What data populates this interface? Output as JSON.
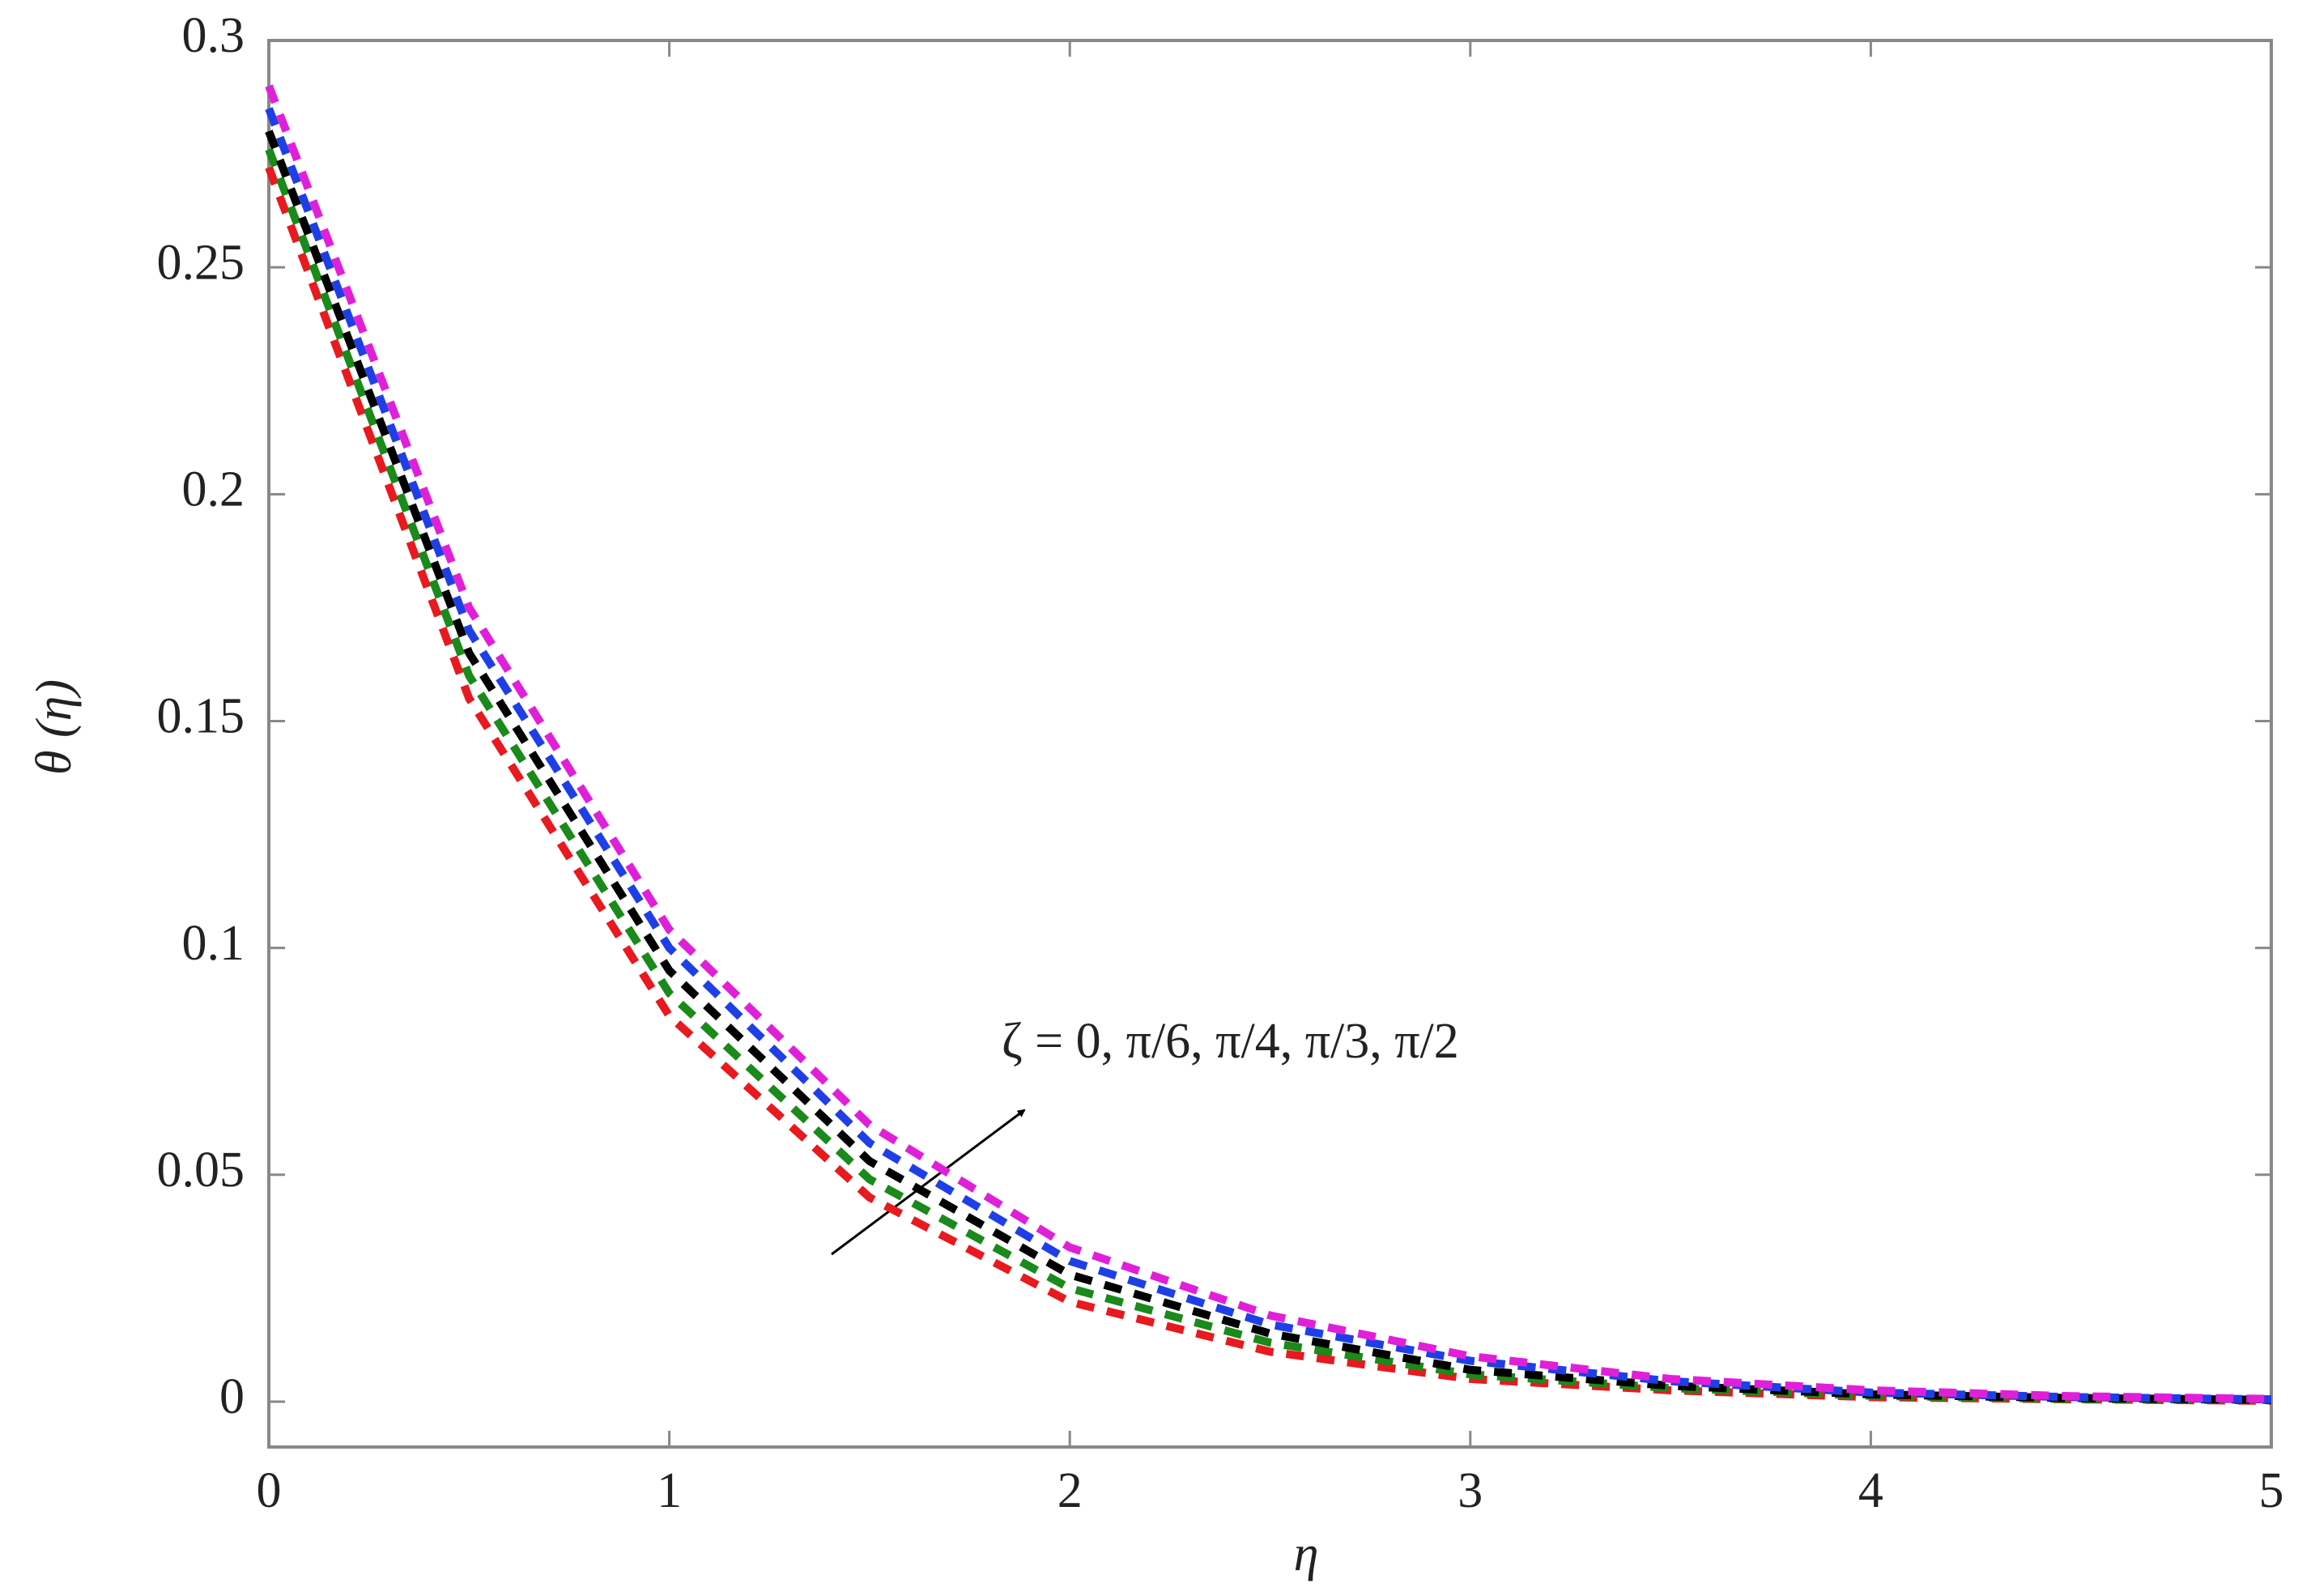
{
  "chart_data": {
    "type": "line",
    "y_label": "θ (η)",
    "x_label": "η",
    "annotation": "ζ = 0, π/6, π/4, π/3, π/2",
    "x": [
      0,
      0.5,
      1,
      1.5,
      2,
      2.5,
      3,
      3.5,
      4,
      4.5,
      5
    ],
    "series": [
      {
        "color": "#e8191f",
        "values": [
          0.272,
          0.155,
          0.085,
          0.045,
          0.022,
          0.011,
          0.005,
          0.0025,
          0.001,
          0.0005,
          0.0002
        ]
      },
      {
        "color": "#1a8a1a",
        "values": [
          0.276,
          0.16,
          0.09,
          0.049,
          0.025,
          0.013,
          0.006,
          0.003,
          0.0013,
          0.0006,
          0.0003
        ]
      },
      {
        "color": "#000000",
        "values": [
          0.28,
          0.165,
          0.095,
          0.053,
          0.028,
          0.015,
          0.007,
          0.0035,
          0.0016,
          0.0008,
          0.0004
        ]
      },
      {
        "color": "#1f3fe6",
        "values": [
          0.285,
          0.17,
          0.1,
          0.057,
          0.031,
          0.017,
          0.009,
          0.0045,
          0.002,
          0.001,
          0.0005
        ]
      },
      {
        "color": "#e020d8",
        "values": [
          0.29,
          0.175,
          0.104,
          0.061,
          0.034,
          0.019,
          0.01,
          0.005,
          0.0025,
          0.0012,
          0.0006
        ]
      }
    ],
    "xlim": [
      0,
      5
    ],
    "ylim": [
      -0.01,
      0.3
    ],
    "xticks": [
      0,
      1,
      2,
      3,
      4,
      5
    ],
    "yticks": [
      0,
      0.05,
      0.1,
      0.15,
      0.2,
      0.25,
      0.3
    ],
    "dashed": true
  }
}
